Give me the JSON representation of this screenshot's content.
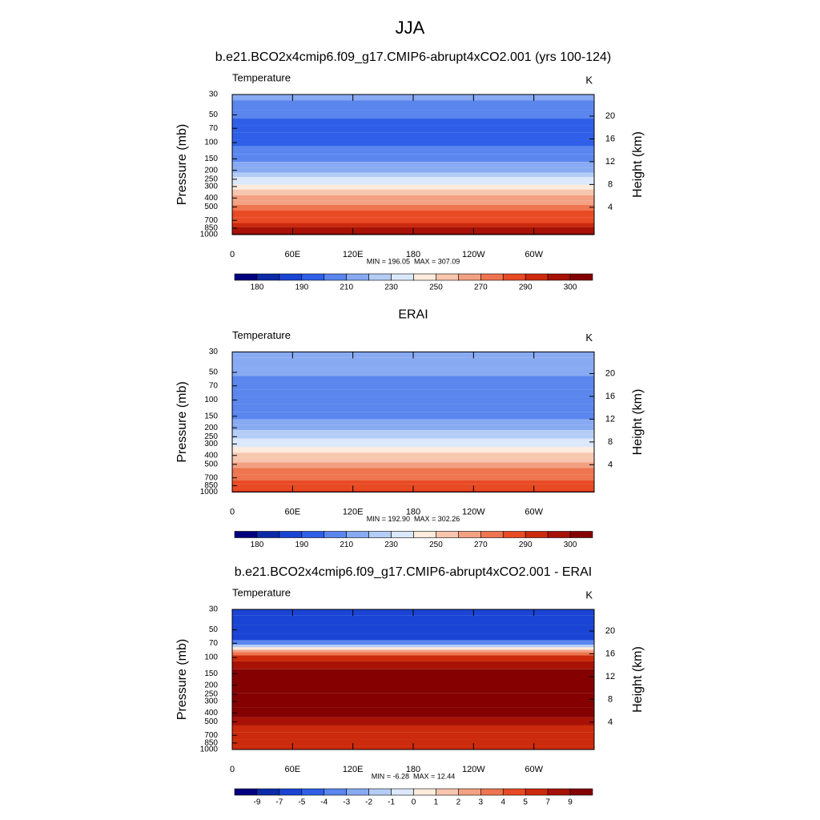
{
  "title": "JJA",
  "chart_data": [
    {
      "type": "contour",
      "title": "b.e21.BCO2x4cmip6.f09_g17.CMIP6-abrupt4xCO2.001 (yrs 100-124)",
      "variable": "Temperature",
      "units": "K",
      "ylabel": "Pressure (mb)",
      "y2label": "Height (km)",
      "annotation": "MIN = 196.05  MAX = 307.09",
      "y": [
        30,
        40,
        50,
        60,
        70,
        85,
        100,
        120,
        150,
        175,
        200,
        225,
        250,
        275,
        300,
        350,
        400,
        450,
        500,
        600,
        700,
        800,
        850,
        925,
        1000
      ],
      "values": [
        212,
        208,
        202,
        198,
        196,
        197,
        199,
        203,
        208,
        213,
        218,
        225,
        232,
        237,
        243,
        252,
        260,
        267,
        273,
        282,
        288,
        292,
        295,
        298,
        302
      ],
      "ylim": [
        1000,
        30
      ],
      "ylog": true,
      "yticks": [
        30,
        50,
        70,
        100,
        150,
        200,
        250,
        300,
        400,
        500,
        700,
        850,
        1000
      ],
      "y2lim": [
        -0.8,
        23.8
      ],
      "y2ticks": [
        4,
        8,
        12,
        16,
        20
      ],
      "xlim": [
        0,
        360
      ],
      "xticks": [
        0,
        {
          "value": 60,
          "label": "60E"
        },
        {
          "value": 120,
          "label": "120E"
        },
        180,
        {
          "value": 240,
          "label": "120W"
        },
        {
          "value": 300,
          "label": "60W"
        }
      ],
      "colorbar": {
        "ticks": [
          180,
          190,
          210,
          230,
          250,
          270,
          290,
          300
        ],
        "colors": [
          "#00007f",
          "#0a2aa8",
          "#1a44d4",
          "#2f5fe8",
          "#5a86ee",
          "#88aaf2",
          "#b4cdf6",
          "#dbe8fb",
          "#fdebdd",
          "#f8c6ae",
          "#f3a083",
          "#ee7550",
          "#e84a24",
          "#cc2a0c",
          "#a81206",
          "#850000"
        ]
      }
    },
    {
      "type": "contour",
      "title": "ERAI",
      "variable": "Temperature",
      "units": "K",
      "ylabel": "Pressure (mb)",
      "y2label": "Height (km)",
      "annotation": "MIN = 192.90  MAX = 302.26",
      "y": [
        30,
        40,
        50,
        60,
        70,
        85,
        100,
        120,
        150,
        175,
        200,
        225,
        250,
        275,
        300,
        350,
        400,
        450,
        500,
        600,
        700,
        800,
        850,
        925,
        1000
      ],
      "values": [
        218,
        215,
        212,
        208,
        205,
        202,
        200,
        203,
        207,
        212,
        217,
        222,
        228,
        233,
        238,
        246,
        253,
        259,
        264,
        272,
        278,
        283,
        285,
        288,
        290
      ],
      "ylim": [
        1000,
        30
      ],
      "ylog": true,
      "yticks": [
        30,
        50,
        70,
        100,
        150,
        200,
        250,
        300,
        400,
        500,
        700,
        850,
        1000
      ],
      "y2lim": [
        -0.8,
        23.8
      ],
      "y2ticks": [
        4,
        8,
        12,
        16,
        20
      ],
      "xlim": [
        0,
        360
      ],
      "xticks": [
        0,
        {
          "value": 60,
          "label": "60E"
        },
        {
          "value": 120,
          "label": "120E"
        },
        180,
        {
          "value": 240,
          "label": "120W"
        },
        {
          "value": 300,
          "label": "60W"
        }
      ],
      "colorbar": {
        "ticks": [
          180,
          190,
          210,
          230,
          250,
          270,
          290,
          300
        ],
        "colors": [
          "#00007f",
          "#0a2aa8",
          "#1a44d4",
          "#2f5fe8",
          "#5a86ee",
          "#88aaf2",
          "#b4cdf6",
          "#dbe8fb",
          "#fdebdd",
          "#f8c6ae",
          "#f3a083",
          "#ee7550",
          "#e84a24",
          "#cc2a0c",
          "#a81206",
          "#850000"
        ]
      }
    },
    {
      "type": "contour",
      "title": "b.e21.BCO2x4cmip6.f09_g17.CMIP6-abrupt4xCO2.001 - ERAI",
      "variable": "Temperature",
      "units": "K",
      "ylabel": "Pressure (mb)",
      "y2label": "Height (km)",
      "annotation": "MIN = -6.28  MAX = 12.44",
      "y": [
        30,
        40,
        50,
        60,
        70,
        75,
        80,
        85,
        90,
        100,
        120,
        150,
        200,
        300,
        400,
        500,
        600,
        700,
        850,
        1000
      ],
      "values": [
        -6,
        -6,
        -6,
        -5.5,
        -4,
        -2,
        0.5,
        2,
        3.5,
        5,
        7,
        10,
        11,
        11,
        10,
        8,
        6.5,
        6,
        5.5,
        5
      ],
      "ylim": [
        1000,
        30
      ],
      "ylog": true,
      "yticks": [
        30,
        50,
        70,
        100,
        150,
        200,
        250,
        300,
        400,
        500,
        700,
        850,
        1000
      ],
      "y2lim": [
        -0.8,
        23.8
      ],
      "y2ticks": [
        4,
        8,
        12,
        16,
        20
      ],
      "xlim": [
        0,
        360
      ],
      "xticks": [
        0,
        {
          "value": 60,
          "label": "60E"
        },
        {
          "value": 120,
          "label": "120E"
        },
        180,
        {
          "value": 240,
          "label": "120W"
        },
        {
          "value": 300,
          "label": "60W"
        }
      ],
      "colorbar": {
        "ticks": [
          -9,
          -7,
          -5,
          -4,
          -3,
          -2,
          -1,
          0,
          1,
          2,
          3,
          4,
          5,
          7,
          9
        ],
        "colors": [
          "#00007f",
          "#0a2aa8",
          "#1a44d4",
          "#2f5fe8",
          "#5a86ee",
          "#88aaf2",
          "#b4cdf6",
          "#dbe8fb",
          "#fdebdd",
          "#f8c6ae",
          "#f3a083",
          "#ee7550",
          "#e84a24",
          "#cc2a0c",
          "#a81206",
          "#850000"
        ]
      }
    }
  ]
}
